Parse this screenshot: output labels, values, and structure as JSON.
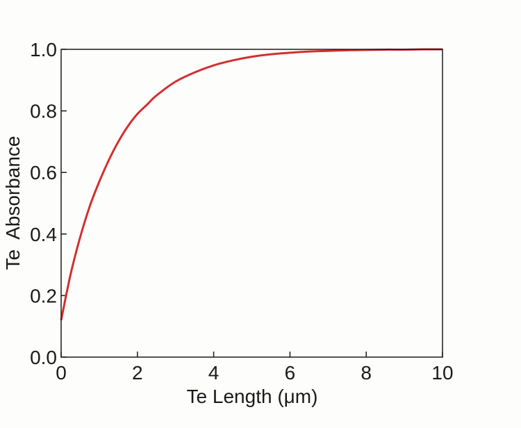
{
  "chart_data": {
    "type": "line",
    "title": "",
    "xlabel": "Te Length (μm)",
    "ylabel": "Te  Absorbance",
    "xlim": [
      0,
      10
    ],
    "ylim": [
      0,
      1.0
    ],
    "xticks": [
      "0",
      "2",
      "4",
      "6",
      "8",
      "10"
    ],
    "yticks": [
      "0.0",
      "0.2",
      "0.4",
      "0.6",
      "0.8",
      "1.0"
    ],
    "grid": false,
    "legend": "none",
    "series": [
      {
        "color": "#d32f2f",
        "x": [
          0,
          0.25,
          0.5,
          0.75,
          1.0,
          1.25,
          1.5,
          1.75,
          2.0,
          2.25,
          2.5,
          3.0,
          3.5,
          4.0,
          4.5,
          5.0,
          5.5,
          6.0,
          6.5,
          7.0,
          7.5,
          8.0,
          8.5,
          9.0,
          9.5,
          10.0
        ],
        "y": [
          0.12,
          0.27,
          0.39,
          0.49,
          0.57,
          0.64,
          0.7,
          0.75,
          0.79,
          0.82,
          0.85,
          0.895,
          0.925,
          0.948,
          0.964,
          0.976,
          0.984,
          0.989,
          0.993,
          0.995,
          0.997,
          0.998,
          0.999,
          0.999,
          1.0,
          1.0
        ]
      }
    ]
  }
}
